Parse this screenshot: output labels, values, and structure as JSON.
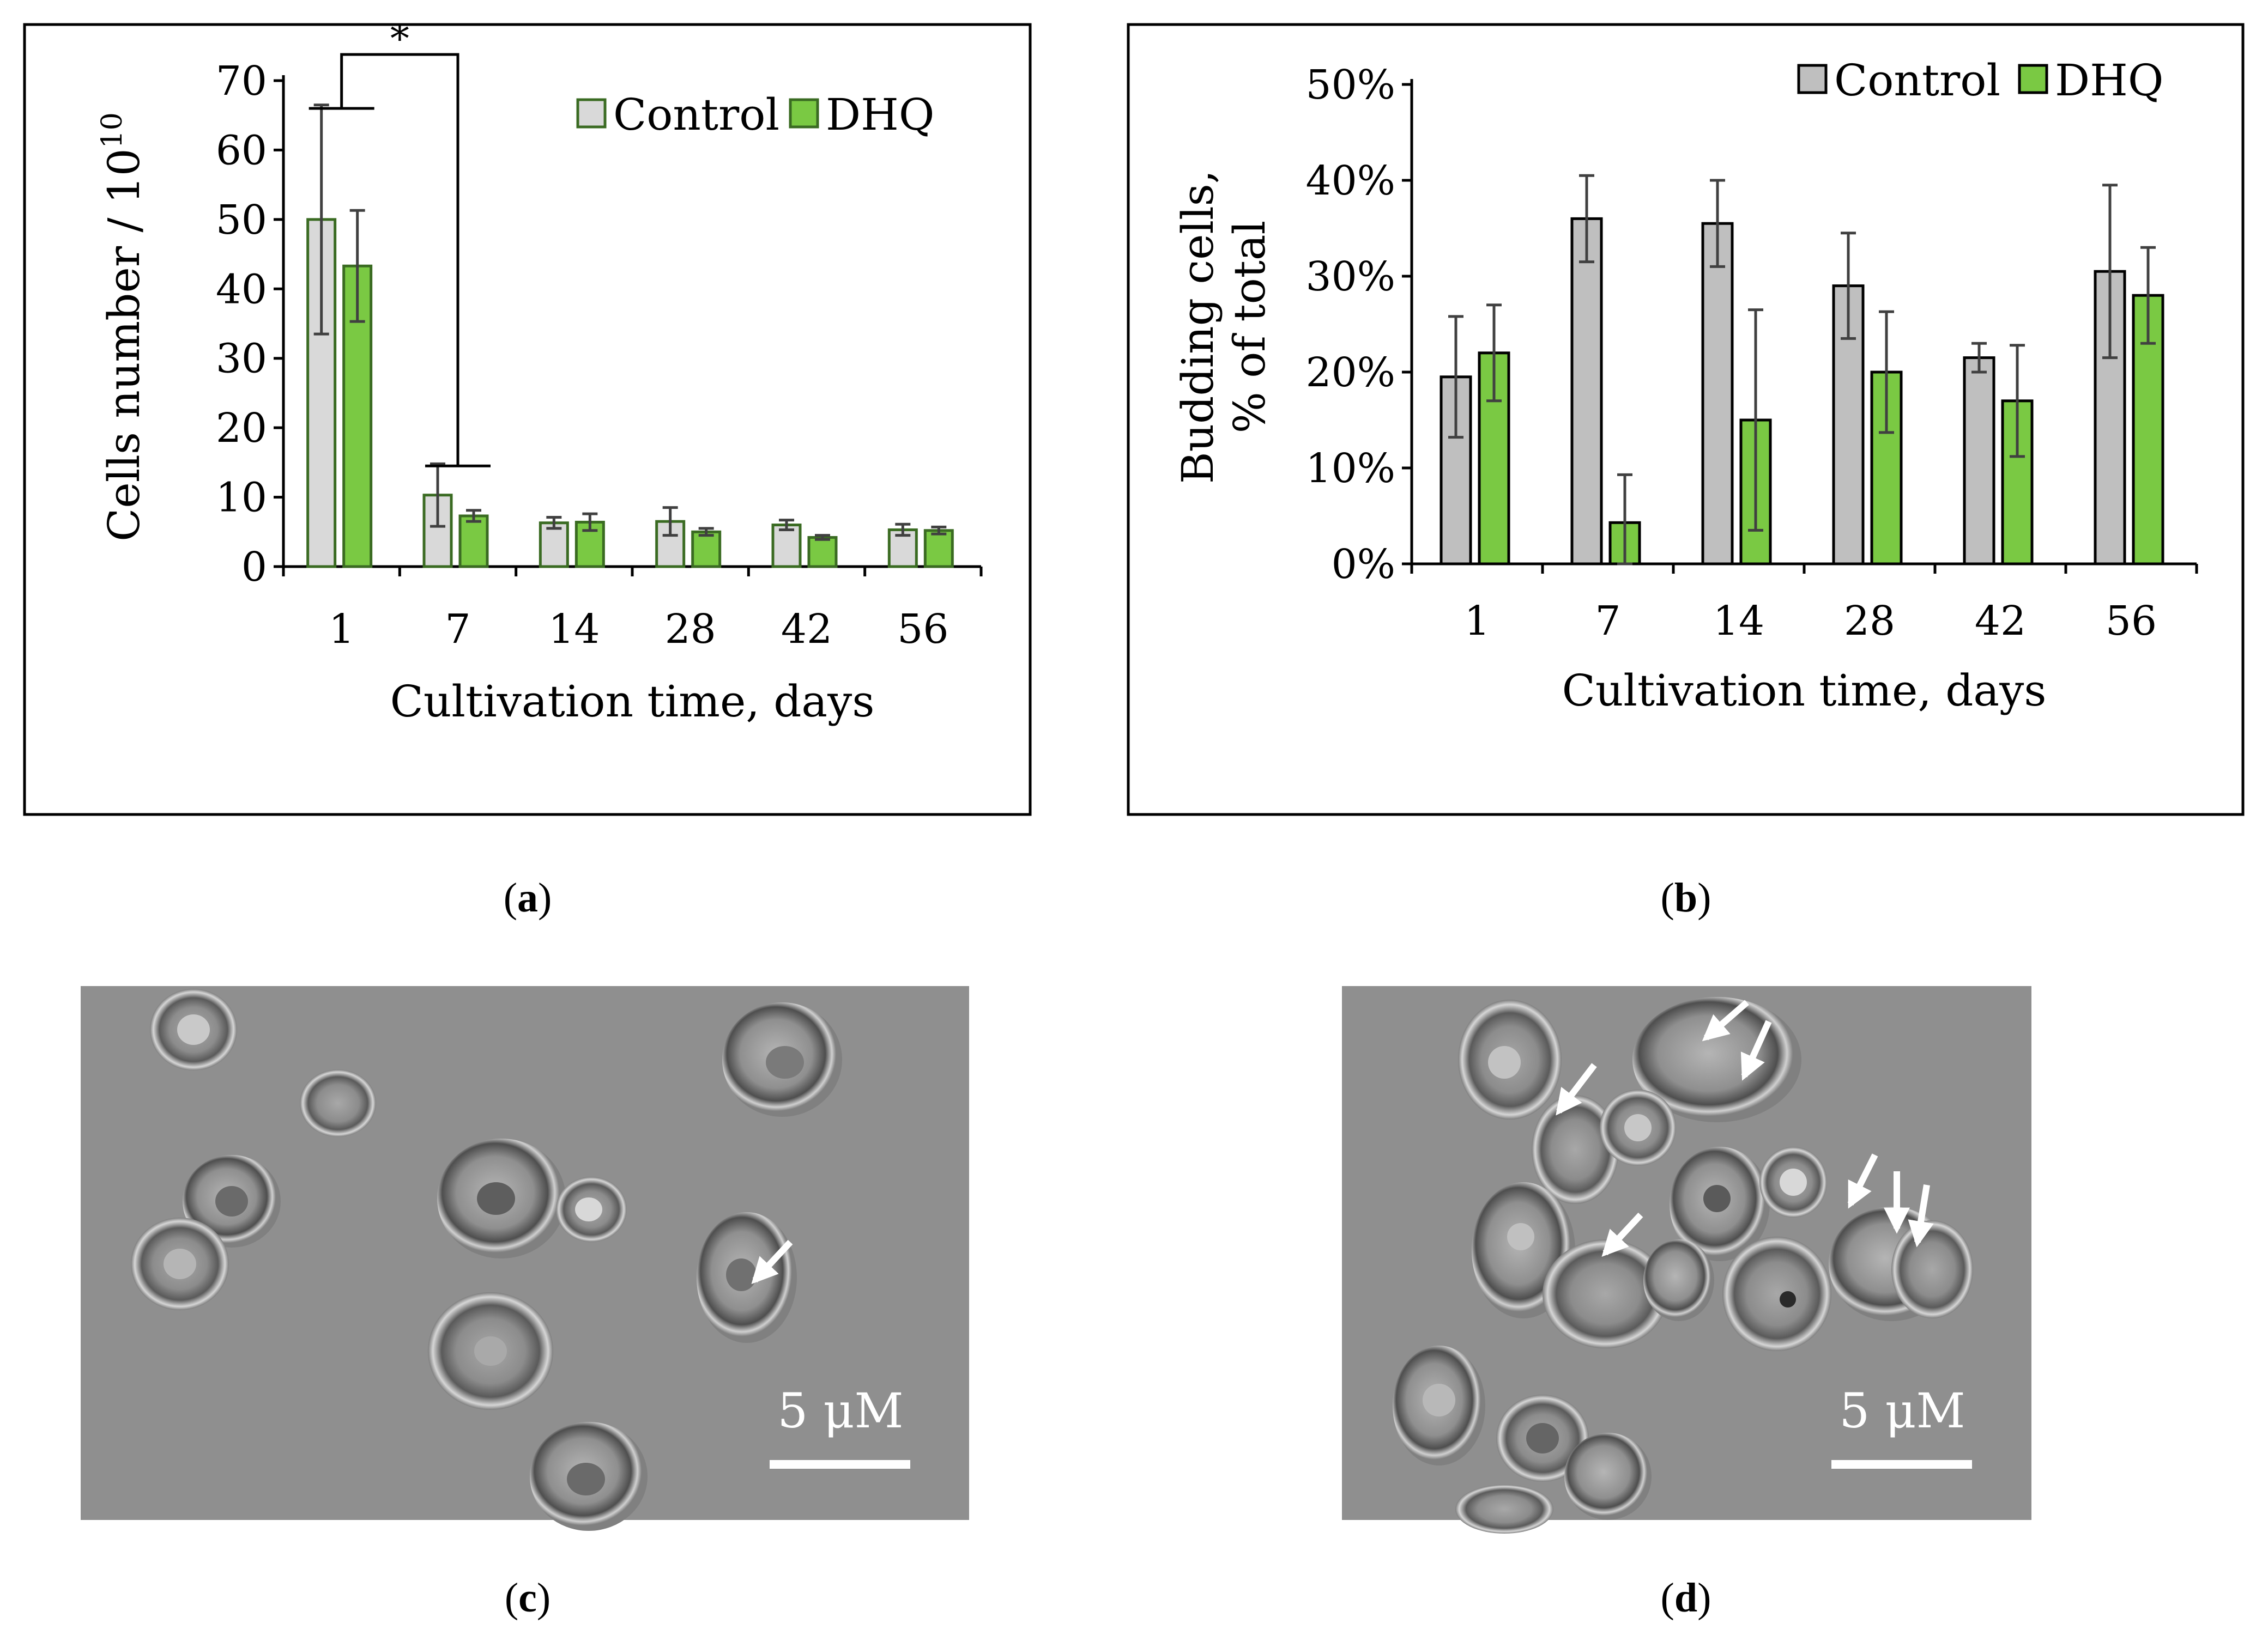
{
  "chart_data": [
    {
      "type": "bar",
      "panel": "a",
      "categories": [
        "1",
        "7",
        "14",
        "28",
        "42",
        "56"
      ],
      "series": [
        {
          "name": "Control",
          "values": [
            50,
            10.3,
            6.3,
            6.5,
            6.0,
            5.3
          ],
          "errors": [
            16.5,
            4.5,
            0.8,
            2.0,
            0.7,
            0.8
          ]
        },
        {
          "name": "DHQ",
          "values": [
            43.3,
            7.3,
            6.4,
            5.0,
            4.2,
            5.2
          ],
          "errors": [
            8.0,
            0.8,
            1.2,
            0.5,
            0.3,
            0.5
          ]
        }
      ],
      "colors": {
        "Control": "#d9d9d9",
        "DHQ": "#7ac943",
        "edge": "#3a6b22"
      },
      "ylabel_main": "Cells number / 10",
      "ylabel_sup": "10",
      "xlabel": "Cultivation time, days",
      "ylim": [
        0,
        70
      ],
      "yticks": [
        "0",
        "10",
        "20",
        "30",
        "40",
        "50",
        "60",
        "70"
      ],
      "significance": "*",
      "caption": "a"
    },
    {
      "type": "bar",
      "panel": "b",
      "categories": [
        "1",
        "7",
        "14",
        "28",
        "42",
        "56"
      ],
      "series": [
        {
          "name": "Control",
          "values": [
            19.5,
            36.0,
            35.5,
            29.0,
            21.5,
            30.5
          ],
          "errors": [
            6.3,
            4.5,
            4.5,
            5.5,
            1.5,
            9.0
          ]
        },
        {
          "name": "DHQ",
          "values": [
            22.0,
            4.3,
            15.0,
            20.0,
            17.0,
            28.0
          ],
          "errors": [
            5.0,
            5.0,
            11.5,
            6.3,
            5.8,
            5.0
          ]
        }
      ],
      "colors": {
        "Control": "#bfbfbf",
        "DHQ": "#7ac943",
        "edge": "#000000"
      },
      "ylabel_line1": "Budding cells,",
      "ylabel_line2": "% of total",
      "xlabel": "Cultivation time, days",
      "ylim": [
        0,
        50
      ],
      "yticks": [
        "0%",
        "10%",
        "20%",
        "30%",
        "40%",
        "50%"
      ],
      "caption": "b"
    }
  ],
  "micrographs": [
    {
      "caption": "c",
      "scale_label": "5 μM"
    },
    {
      "caption": "d",
      "scale_label": "5 μM"
    }
  ]
}
